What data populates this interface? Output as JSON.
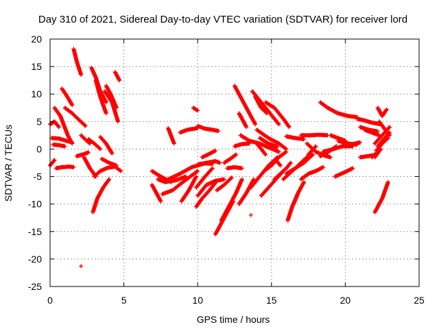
{
  "chart_data": {
    "type": "scatter",
    "title": "Day 310 of 2021, Sidereal Day-to-day VTEC variation (SDTVAR) for receiver lord",
    "xlabel": "GPS time / hours",
    "ylabel": "SDTVAR / TECUs",
    "xlim": [
      0,
      25
    ],
    "ylim": [
      -25,
      20
    ],
    "xticks": [
      0,
      5,
      10,
      15,
      20,
      25
    ],
    "yticks": [
      20,
      15,
      10,
      5,
      0,
      -5,
      -10,
      -15,
      -20,
      -25
    ],
    "grid": true,
    "marker": "+",
    "color": "#ff0000",
    "tracks": [
      {
        "x": [
          0.0,
          0.3,
          0.6
        ],
        "y": [
          4.5,
          5.0,
          4.0
        ]
      },
      {
        "x": [
          0.0,
          0.3
        ],
        "y": [
          -3.0,
          -2.0
        ]
      },
      {
        "x": [
          0.3,
          0.7,
          1.2,
          1.5
        ],
        "y": [
          7.5,
          6.0,
          2.5,
          1.0
        ]
      },
      {
        "x": [
          0.4,
          0.8,
          1.3,
          1.6
        ],
        "y": [
          -3.5,
          -3.3,
          -3.2,
          -3.3
        ]
      },
      {
        "x": [
          0.1,
          0.6,
          1.1,
          1.5
        ],
        "y": [
          2.0,
          1.9,
          1.5,
          1.2
        ]
      },
      {
        "x": [
          0.2,
          0.6,
          1.0
        ],
        "y": [
          0.8,
          0.7,
          0.5
        ]
      },
      {
        "x": [
          1.0,
          1.5,
          2.0,
          2.4
        ],
        "y": [
          7.5,
          6.5,
          5.2,
          4.2
        ]
      },
      {
        "x": [
          0.8,
          1.1,
          1.5
        ],
        "y": [
          11.0,
          9.8,
          8.0
        ]
      },
      {
        "x": [
          1.6,
          1.8,
          2.1
        ],
        "y": [
          18.2,
          16.0,
          13.5
        ]
      },
      {
        "x": [
          2.1,
          2.4,
          2.7
        ],
        "y": [
          2.5,
          1.7,
          1.0
        ]
      },
      {
        "x": [
          1.8,
          2.2,
          2.6
        ],
        "y": [
          -1.3,
          -1.0,
          -0.6
        ]
      },
      {
        "x": [
          2.3,
          2.7,
          3.1
        ],
        "y": [
          -1.5,
          -3.5,
          -5.0
        ]
      },
      {
        "x": [
          2.8,
          3.1,
          3.4,
          3.8
        ],
        "y": [
          14.8,
          13.0,
          10.5,
          8.5
        ]
      },
      {
        "x": [
          3.1,
          3.4,
          3.8
        ],
        "y": [
          12.5,
          9.5,
          6.5
        ]
      },
      {
        "x": [
          2.6,
          3.0,
          3.4
        ],
        "y": [
          1.8,
          1.0,
          0.0
        ]
      },
      {
        "x": [
          2.9,
          3.2,
          3.6,
          4.0
        ],
        "y": [
          -11.5,
          -9.0,
          -7.0,
          -5.5
        ]
      },
      {
        "x": [
          3.0,
          3.4,
          3.9,
          4.4,
          4.8
        ],
        "y": [
          -5.0,
          -4.0,
          -3.4,
          -3.2,
          -4.0
        ]
      },
      {
        "x": [
          3.7,
          4.2,
          4.6
        ],
        "y": [
          10.5,
          8.5,
          5.0
        ]
      },
      {
        "x": [
          3.4,
          3.8,
          4.2
        ],
        "y": [
          2.2,
          1.0,
          -0.8
        ]
      },
      {
        "x": [
          3.5,
          4.0,
          4.5
        ],
        "y": [
          -1.8,
          -2.5,
          -3.0
        ]
      },
      {
        "x": [
          4.4,
          4.7
        ],
        "y": [
          14.0,
          12.5
        ]
      },
      {
        "x": [
          3.8,
          4.1,
          4.5
        ],
        "y": [
          11.5,
          10.0,
          7.5
        ]
      },
      {
        "x": [
          2.1
        ],
        "y": [
          -21.3
        ]
      },
      {
        "x": [
          6.9,
          7.5,
          8.2
        ],
        "y": [
          -4.0,
          -5.0,
          -6.0
        ]
      },
      {
        "x": [
          6.9,
          7.2,
          7.5
        ],
        "y": [
          -6.5,
          -8.0,
          -9.5
        ]
      },
      {
        "x": [
          7.3,
          7.8,
          8.5,
          9.2
        ],
        "y": [
          -5.5,
          -6.0,
          -5.7,
          -5.0
        ]
      },
      {
        "x": [
          7.6,
          8.3,
          9.0,
          10.0
        ],
        "y": [
          -8.2,
          -7.5,
          -6.0,
          -4.0
        ]
      },
      {
        "x": [
          8.0,
          8.8,
          9.6,
          10.5,
          11.0
        ],
        "y": [
          -5.5,
          -4.5,
          -3.3,
          -2.6,
          -2.7
        ]
      },
      {
        "x": [
          8.0,
          8.4
        ],
        "y": [
          3.8,
          1.0
        ]
      },
      {
        "x": [
          8.8,
          9.3,
          10.0
        ],
        "y": [
          3.0,
          3.5,
          3.8
        ]
      },
      {
        "x": [
          9.7,
          10.0
        ],
        "y": [
          7.5,
          7.0
        ]
      },
      {
        "x": [
          10.0,
          10.5,
          11.0,
          11.4
        ],
        "y": [
          4.2,
          3.7,
          3.5,
          3.3
        ]
      },
      {
        "x": [
          10.0,
          10.6,
          11.2,
          11.5
        ],
        "y": [
          -2.8,
          -2.5,
          -2.2,
          -2.5
        ]
      },
      {
        "x": [
          9.9,
          10.3,
          10.8,
          11.3
        ],
        "y": [
          -10.5,
          -9.0,
          -7.5,
          -5.8
        ]
      },
      {
        "x": [
          8.9,
          9.4,
          9.9
        ],
        "y": [
          -9.5,
          -7.5,
          -5.0
        ]
      },
      {
        "x": [
          9.9,
          10.5,
          11.0
        ],
        "y": [
          -7.0,
          -5.0,
          -3.5
        ]
      },
      {
        "x": [
          10.3,
          10.7,
          11.2
        ],
        "y": [
          -1.5,
          -1.0,
          -0.3
        ]
      },
      {
        "x": [
          10.0,
          10.6,
          11.2,
          11.8
        ],
        "y": [
          -8.5,
          -6.5,
          -5.8,
          -5.5
        ]
      },
      {
        "x": [
          11.2,
          11.6,
          12.0,
          12.4
        ],
        "y": [
          -15.5,
          -13.5,
          -11.5,
          -9.5
        ]
      },
      {
        "x": [
          11.6,
          12.1,
          12.6,
          13.0
        ],
        "y": [
          -13.0,
          -10.5,
          -8.0,
          -5.5
        ]
      },
      {
        "x": [
          11.3,
          11.8,
          12.3
        ],
        "y": [
          -7.5,
          -6.5,
          -5.2
        ]
      },
      {
        "x": [
          12.0,
          12.5,
          13.0
        ],
        "y": [
          -3.5,
          -3.3,
          -3.5
        ]
      },
      {
        "x": [
          11.8,
          12.2,
          12.6
        ],
        "y": [
          -2.5,
          -1.8,
          -1.0
        ]
      },
      {
        "x": [
          12.5,
          13.0,
          13.5
        ],
        "y": [
          0.5,
          0.9,
          1.0
        ]
      },
      {
        "x": [
          12.5,
          13.0,
          13.5,
          13.9
        ],
        "y": [
          11.5,
          9.0,
          6.5,
          4.5
        ]
      },
      {
        "x": [
          12.8,
          13.3
        ],
        "y": [
          6.5,
          4.0
        ]
      },
      {
        "x": [
          12.9,
          13.5,
          14.2,
          14.8,
          15.5
        ],
        "y": [
          2.5,
          1.5,
          1.0,
          0.3,
          -0.5
        ]
      },
      {
        "x": [
          12.8,
          13.3,
          13.8
        ],
        "y": [
          -10.0,
          -8.0,
          -5.5
        ]
      },
      {
        "x": [
          13.6
        ],
        "y": [
          -12.0
        ]
      },
      {
        "x": [
          13.6,
          14.2,
          14.8,
          15.4
        ],
        "y": [
          -7.0,
          -5.0,
          -3.0,
          -1.5
        ]
      },
      {
        "x": [
          13.7,
          14.3,
          14.9,
          15.5
        ],
        "y": [
          10.5,
          8.5,
          6.5,
          4.5
        ]
      },
      {
        "x": [
          14.0,
          14.8,
          15.5,
          16.0
        ],
        "y": [
          3.5,
          2.0,
          1.0,
          0.0
        ]
      },
      {
        "x": [
          14.2,
          14.8,
          15.4
        ],
        "y": [
          2.0,
          1.0,
          0.4
        ]
      },
      {
        "x": [
          13.9,
          14.3,
          14.7
        ],
        "y": [
          9.5,
          7.5,
          6.5
        ]
      },
      {
        "x": [
          14.0,
          14.6
        ],
        "y": [
          1.0,
          -1.0
        ]
      },
      {
        "x": [
          14.6,
          15.2,
          15.8,
          16.2
        ],
        "y": [
          8.5,
          7.5,
          5.5,
          4.0
        ]
      },
      {
        "x": [
          15.3,
          15.6
        ],
        "y": [
          -2.0,
          -3.0
        ]
      },
      {
        "x": [
          14.5,
          15.0,
          15.5,
          16.0
        ],
        "y": [
          -4.0,
          -3.0,
          -1.5,
          -0.5
        ]
      },
      {
        "x": [
          15.2,
          15.6,
          16.0,
          16.3
        ],
        "y": [
          -5.5,
          -4.5,
          -3.5,
          -2.5
        ]
      },
      {
        "x": [
          14.3,
          14.8,
          15.3,
          15.8
        ],
        "y": [
          -8.5,
          -7.0,
          -5.5,
          -4.0
        ]
      },
      {
        "x": [
          15.8,
          16.2,
          16.7,
          17.2
        ],
        "y": [
          -5.5,
          -4.5,
          -3.3,
          -2.0
        ]
      },
      {
        "x": [
          16.1,
          16.4,
          16.8
        ],
        "y": [
          -13.0,
          -10.5,
          -8.0
        ]
      },
      {
        "x": [
          16.5,
          16.8,
          17.2
        ],
        "y": [
          -10.0,
          -8.0,
          -6.0
        ]
      },
      {
        "x": [
          16.0,
          16.6,
          17.2,
          17.8
        ],
        "y": [
          -4.5,
          -3.5,
          -2.5,
          -1.0
        ]
      },
      {
        "x": [
          16.8,
          17.2,
          17.6
        ],
        "y": [
          -3.0,
          -2.0,
          -1.0
        ]
      },
      {
        "x": [
          17.0,
          17.5,
          18.0,
          18.5
        ],
        "y": [
          -5.5,
          -4.5,
          -4.0,
          -3.3
        ]
      },
      {
        "x": [
          17.5,
          18.0
        ],
        "y": [
          -1.0,
          0.5
        ]
      },
      {
        "x": [
          16.0,
          16.6,
          17.2
        ],
        "y": [
          2.3,
          2.0,
          1.8
        ]
      },
      {
        "x": [
          17.0,
          17.6,
          18.2,
          18.8
        ],
        "y": [
          2.5,
          2.5,
          2.6,
          2.5
        ]
      },
      {
        "x": [
          17.4,
          18.0,
          18.6,
          19.0
        ],
        "y": [
          1.0,
          -0.5,
          -1.2,
          -1.5
        ]
      },
      {
        "x": [
          18.3,
          18.8,
          19.4
        ],
        "y": [
          -1.3,
          -0.6,
          0.5
        ]
      },
      {
        "x": [
          18.5,
          19.2,
          19.8,
          20.5
        ],
        "y": [
          -0.5,
          0.0,
          0.5,
          0.5
        ]
      },
      {
        "x": [
          19.0,
          19.5,
          20.0
        ],
        "y": [
          2.5,
          2.0,
          1.5
        ]
      },
      {
        "x": [
          18.3,
          18.8,
          19.5,
          20.2,
          20.8
        ],
        "y": [
          8.5,
          7.5,
          6.5,
          6.0,
          5.8
        ]
      },
      {
        "x": [
          19.5,
          20.2,
          20.8
        ],
        "y": [
          1.5,
          1.0,
          0.8
        ]
      },
      {
        "x": [
          19.9,
          20.5,
          21.0
        ],
        "y": [
          0.8,
          0.9,
          1.2
        ]
      },
      {
        "x": [
          20.8,
          21.3,
          21.8,
          22.4
        ],
        "y": [
          5.5,
          5.2,
          4.8,
          4.5
        ]
      },
      {
        "x": [
          21.3,
          21.8,
          22.3
        ],
        "y": [
          3.5,
          3.0,
          2.5
        ]
      },
      {
        "x": [
          21.0,
          21.6,
          22.2
        ],
        "y": [
          4.0,
          3.5,
          3.2
        ]
      },
      {
        "x": [
          21.0,
          21.5,
          22.0
        ],
        "y": [
          -1.5,
          -1.3,
          -1.1
        ]
      },
      {
        "x": [
          21.8,
          22.2
        ],
        "y": [
          -1.5,
          -0.5
        ]
      },
      {
        "x": [
          19.3,
          19.9,
          20.5
        ],
        "y": [
          -5.0,
          -4.3,
          -3.5
        ]
      },
      {
        "x": [
          22.0,
          22.5,
          22.9
        ],
        "y": [
          -11.5,
          -9.0,
          -6.0
        ]
      },
      {
        "x": [
          22.0,
          22.4
        ],
        "y": [
          -1.5,
          0.0
        ]
      },
      {
        "x": [
          22.1,
          22.5,
          22.9
        ],
        "y": [
          -0.3,
          1.0,
          2.0
        ]
      },
      {
        "x": [
          22.2,
          22.6,
          23.0
        ],
        "y": [
          0.5,
          1.8,
          3.0
        ]
      },
      {
        "x": [
          22.0,
          22.5,
          23.0
        ],
        "y": [
          1.0,
          2.5,
          4.0
        ]
      },
      {
        "x": [
          22.2,
          22.5,
          22.8
        ],
        "y": [
          7.5,
          6.0,
          7.2
        ]
      },
      {
        "x": [
          22.3,
          22.7,
          23.0
        ],
        "y": [
          5.0,
          3.5,
          2.5
        ]
      }
    ]
  }
}
